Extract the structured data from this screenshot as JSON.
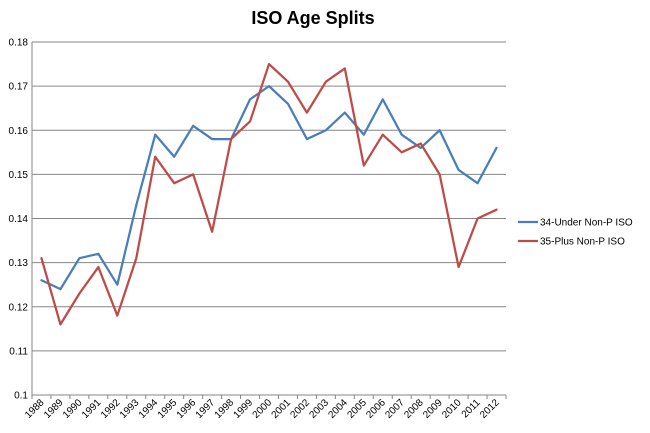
{
  "chart_data": {
    "type": "line",
    "title": "ISO Age Splits",
    "xlabel": "",
    "ylabel": "",
    "ylim": [
      0.1,
      0.18
    ],
    "yticks": [
      "0.1",
      "0.11",
      "0.12",
      "0.13",
      "0.14",
      "0.15",
      "0.16",
      "0.17",
      "0.18"
    ],
    "categories": [
      "1988",
      "1989",
      "1990",
      "1991",
      "1992",
      "1993",
      "1994",
      "1995",
      "1996",
      "1997",
      "1998",
      "1999",
      "2000",
      "2001",
      "2002",
      "2003",
      "2004",
      "2005",
      "2006",
      "2007",
      "2008",
      "2009",
      "2010",
      "2011",
      "2012"
    ],
    "grid": true,
    "legend_position": "right",
    "series": [
      {
        "name": "34-Under Non-P ISO",
        "color": "#4a7ebb",
        "values": [
          0.126,
          0.124,
          0.131,
          0.132,
          0.125,
          0.143,
          0.159,
          0.154,
          0.161,
          0.158,
          0.158,
          0.167,
          0.17,
          0.166,
          0.158,
          0.16,
          0.164,
          0.159,
          0.167,
          0.159,
          0.156,
          0.16,
          0.151,
          0.148,
          0.156
        ]
      },
      {
        "name": "35-Plus Non-P ISO",
        "color": "#be4b48",
        "values": [
          0.131,
          0.116,
          0.123,
          0.129,
          0.118,
          0.131,
          0.154,
          0.148,
          0.15,
          0.137,
          0.158,
          0.162,
          0.175,
          0.171,
          0.164,
          0.171,
          0.174,
          0.152,
          0.159,
          0.155,
          0.157,
          0.15,
          0.129,
          0.14,
          0.142
        ]
      }
    ]
  }
}
